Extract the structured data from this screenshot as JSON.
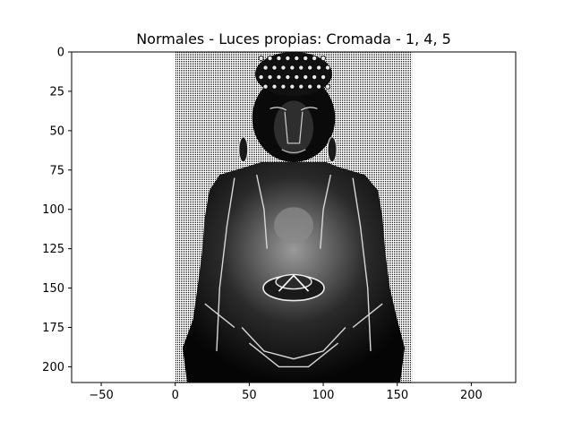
{
  "chart_data": {
    "type": "image",
    "title": "Normales - Luces propias: Cromada - 1, 4, 5",
    "xlim": [
      -70,
      230
    ],
    "ylim": [
      210,
      0
    ],
    "y_inverted": true,
    "image_extent": [
      0,
      160,
      210,
      0
    ],
    "image_description": "Halftone rendering of a seated Buddha statue (chrome shading of surface normals) on a dotted gray background",
    "x_ticks": [
      -50,
      0,
      50,
      100,
      150,
      200
    ],
    "y_ticks": [
      0,
      25,
      50,
      75,
      100,
      125,
      150,
      175,
      200
    ],
    "colors": {
      "background": "#ffffff",
      "axes": "#000000",
      "dots": "#000000",
      "highlight": "#ffffff"
    }
  }
}
